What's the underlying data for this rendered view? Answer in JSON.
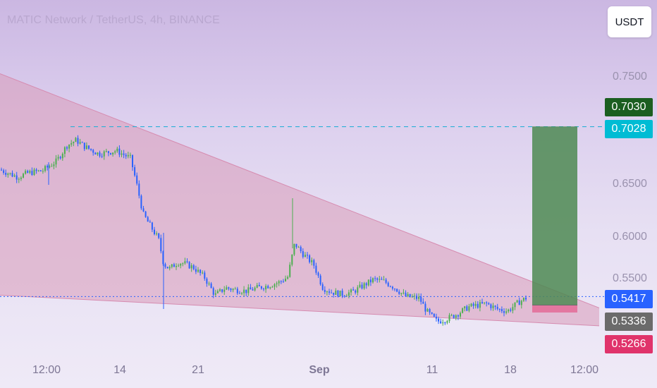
{
  "header": {
    "title": "MATIC Network / TetherUS, 4h, BINANCE"
  },
  "toolbar": {
    "currency_label": "USDT"
  },
  "chart_data": {
    "type": "candlestick",
    "title": "MATIC Network / TetherUS, 4h, BINANCE",
    "ylim": [
      0.525,
      0.78
    ],
    "y_ticks": [
      "0.7500",
      "0.6500",
      "0.6000",
      "0.5500"
    ],
    "x_ticks": [
      "12:00",
      "14",
      "21",
      "Sep",
      "11",
      "18",
      "12:00"
    ],
    "close_path": [
      [
        0,
        0.662
      ],
      [
        25,
        0.655
      ],
      [
        40,
        0.659
      ],
      [
        60,
        0.661
      ],
      [
        80,
        0.67
      ],
      [
        95,
        0.685
      ],
      [
        108,
        0.69
      ],
      [
        120,
        0.684
      ],
      [
        140,
        0.677
      ],
      [
        165,
        0.68
      ],
      [
        185,
        0.673
      ],
      [
        193,
        0.651
      ],
      [
        203,
        0.62
      ],
      [
        212,
        0.61
      ],
      [
        225,
        0.596
      ],
      [
        232,
        0.573
      ],
      [
        240,
        0.568
      ],
      [
        252,
        0.574
      ],
      [
        262,
        0.573
      ],
      [
        275,
        0.569
      ],
      [
        290,
        0.56
      ],
      [
        305,
        0.543
      ],
      [
        320,
        0.55
      ],
      [
        335,
        0.548
      ],
      [
        350,
        0.547
      ],
      [
        365,
        0.55
      ],
      [
        380,
        0.552
      ],
      [
        395,
        0.555
      ],
      [
        408,
        0.56
      ],
      [
        418,
        0.592
      ],
      [
        430,
        0.582
      ],
      [
        445,
        0.572
      ],
      [
        458,
        0.55
      ],
      [
        470,
        0.546
      ],
      [
        485,
        0.544
      ],
      [
        500,
        0.546
      ],
      [
        515,
        0.552
      ],
      [
        530,
        0.558
      ],
      [
        545,
        0.556
      ],
      [
        560,
        0.55
      ],
      [
        575,
        0.542
      ],
      [
        595,
        0.54
      ],
      [
        605,
        0.528
      ],
      [
        620,
        0.518
      ],
      [
        632,
        0.52
      ],
      [
        648,
        0.525
      ],
      [
        665,
        0.532
      ],
      [
        690,
        0.535
      ],
      [
        705,
        0.53
      ],
      [
        720,
        0.528
      ],
      [
        735,
        0.536
      ],
      [
        748,
        0.541
      ]
    ],
    "price_labels": {
      "target_price": "0.7030",
      "resistance_price": "0.7028",
      "current_price": "0.5417",
      "entry_price": "0.5336",
      "stop_price": "0.5266"
    },
    "levels": {
      "target": 0.703,
      "resistance": 0.7028,
      "current": 0.5417,
      "entry": 0.5336,
      "stop": 0.5266
    },
    "wedge": {
      "upper": [
        [
          0,
          0.753
        ],
        [
          850,
          0.531
        ]
      ],
      "lower": [
        [
          0,
          0.543
        ],
        [
          850,
          0.514
        ]
      ]
    },
    "position": {
      "entry": 0.5336,
      "target": 0.703,
      "stop": 0.5266
    },
    "colors": {
      "up": "#4caf50",
      "down": "#2962ff",
      "wedge_fill": "#d89ab8",
      "target_zone": "#4d8a52",
      "stop_zone": "#e36b97",
      "guide_line": "#2ab0d6",
      "current_tag": "#2962ff",
      "entry_tag": "#6b6b6b",
      "stop_tag": "#e0336b",
      "target_tag": "#1b5e20",
      "resistance_tag": "#00bcd4"
    }
  }
}
